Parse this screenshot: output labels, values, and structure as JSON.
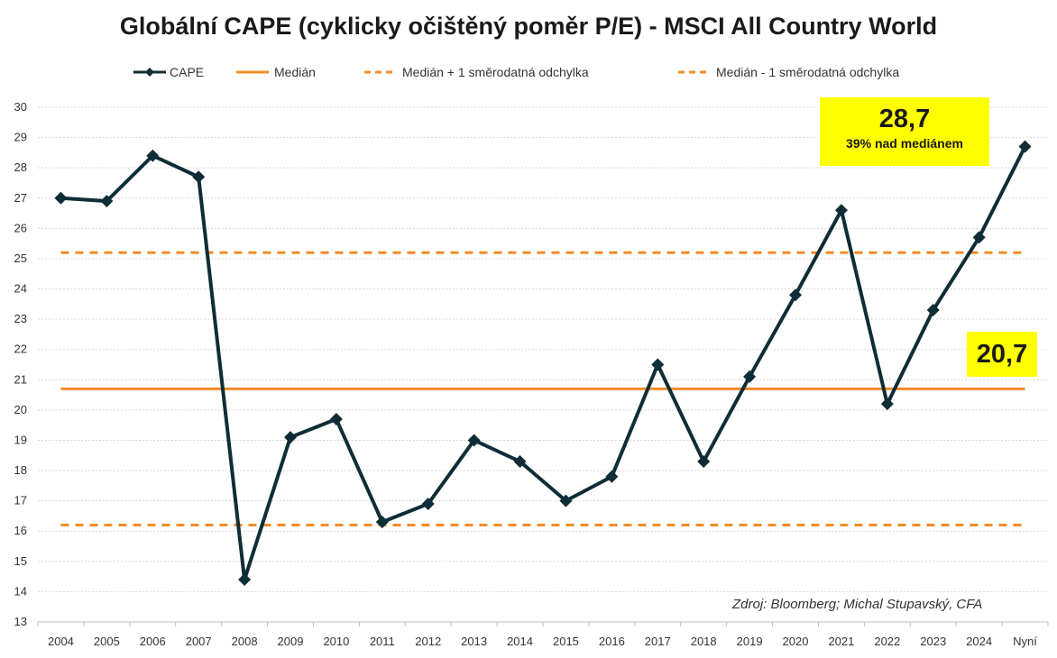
{
  "chart_data": {
    "type": "line",
    "title": "Globální CAPE (cyklicky očištěný poměr P/E) - MSCI All Country World",
    "categories": [
      "2004",
      "2005",
      "2006",
      "2007",
      "2008",
      "2009",
      "2010",
      "2011",
      "2012",
      "2013",
      "2014",
      "2015",
      "2016",
      "2017",
      "2018",
      "2019",
      "2020",
      "2021",
      "2022",
      "2023",
      "2024",
      "Nyní"
    ],
    "series": [
      {
        "name": "CAPE",
        "values": [
          27.0,
          26.9,
          28.4,
          27.7,
          14.4,
          19.1,
          19.7,
          16.3,
          16.9,
          19.0,
          18.3,
          17.0,
          17.8,
          21.5,
          18.3,
          21.1,
          23.8,
          26.6,
          20.2,
          23.3,
          25.7,
          28.7
        ],
        "color": "#0f2d36"
      }
    ],
    "reference_lines": [
      {
        "name": "Medián",
        "value": 20.7,
        "style": "solid",
        "color": "#f28c28"
      },
      {
        "name": "Medián + 1 směrodatná odchylka",
        "value": 25.2,
        "style": "dashed",
        "color": "#f28c28"
      },
      {
        "name": "Medián - 1 směrodatná odchylka",
        "value": 16.2,
        "style": "dashed",
        "color": "#f28c28"
      }
    ],
    "ylim": [
      13,
      30
    ],
    "yticks": [
      13,
      14,
      15,
      16,
      17,
      18,
      19,
      20,
      21,
      22,
      23,
      24,
      25,
      26,
      27,
      28,
      29,
      30
    ],
    "grid": true,
    "legend": "top",
    "annotations": {
      "last_value": "28,7",
      "last_note": "39% nad mediánem",
      "median_value": "20,7",
      "source": "Zdroj: Bloomberg; Michal Stupavský, CFA"
    }
  },
  "colors": {
    "series": "#0f2d36",
    "median": "#f28c28",
    "callout_bg": "#ffff00",
    "grid": "#d9d9d9"
  }
}
